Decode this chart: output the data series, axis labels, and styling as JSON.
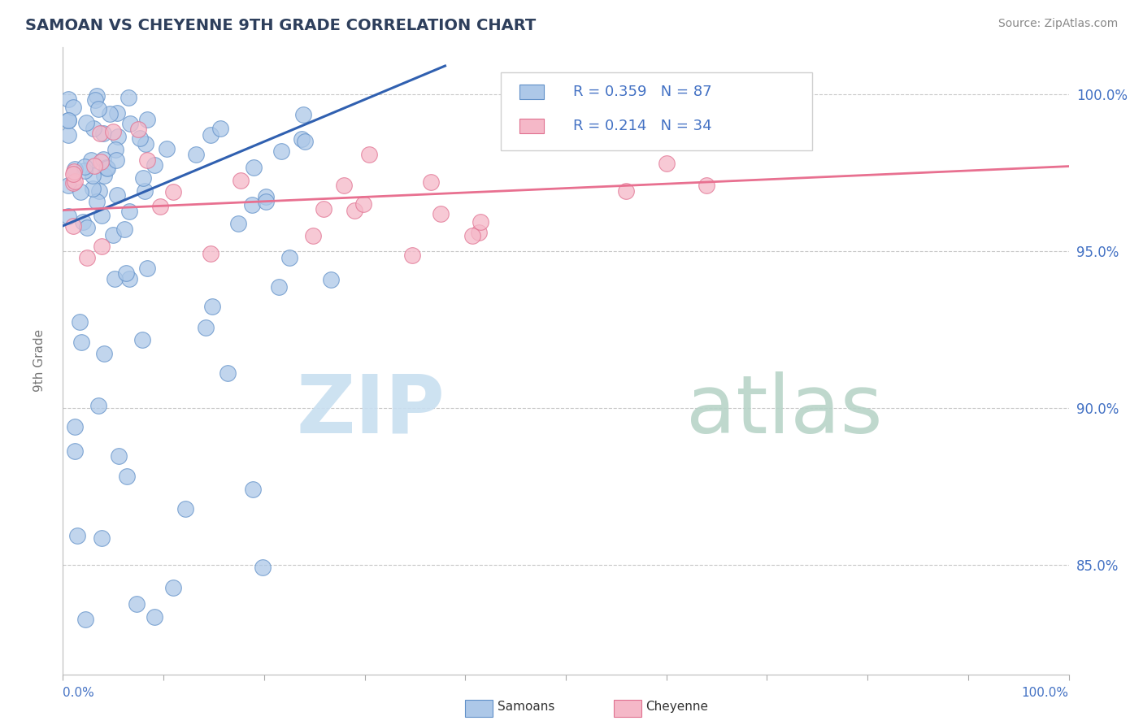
{
  "title": "SAMOAN VS CHEYENNE 9TH GRADE CORRELATION CHART",
  "source_text": "Source: ZipAtlas.com",
  "ylabel": "9th Grade",
  "xlim": [
    0.0,
    1.0
  ],
  "ylim": [
    0.815,
    1.015
  ],
  "ytick_labels": [
    "85.0%",
    "90.0%",
    "95.0%",
    "100.0%"
  ],
  "ytick_values": [
    0.85,
    0.9,
    0.95,
    1.0
  ],
  "r_samoan": 0.359,
  "n_samoan": 87,
  "r_cheyenne": 0.214,
  "n_cheyenne": 34,
  "color_samoan_fill": "#adc8e8",
  "color_samoan_edge": "#6090c8",
  "color_cheyenne_fill": "#f5b8c8",
  "color_cheyenne_edge": "#e07090",
  "color_line_samoan": "#3060b0",
  "color_line_cheyenne": "#e87090",
  "title_color": "#2e3f5c",
  "axis_label_color": "#4472c4",
  "legend_samoan_fill": "#adc8e8",
  "legend_cheyenne_fill": "#f5b8c8",
  "watermark_zip_color": "#c8dff0",
  "watermark_atlas_color": "#b8d4c8"
}
